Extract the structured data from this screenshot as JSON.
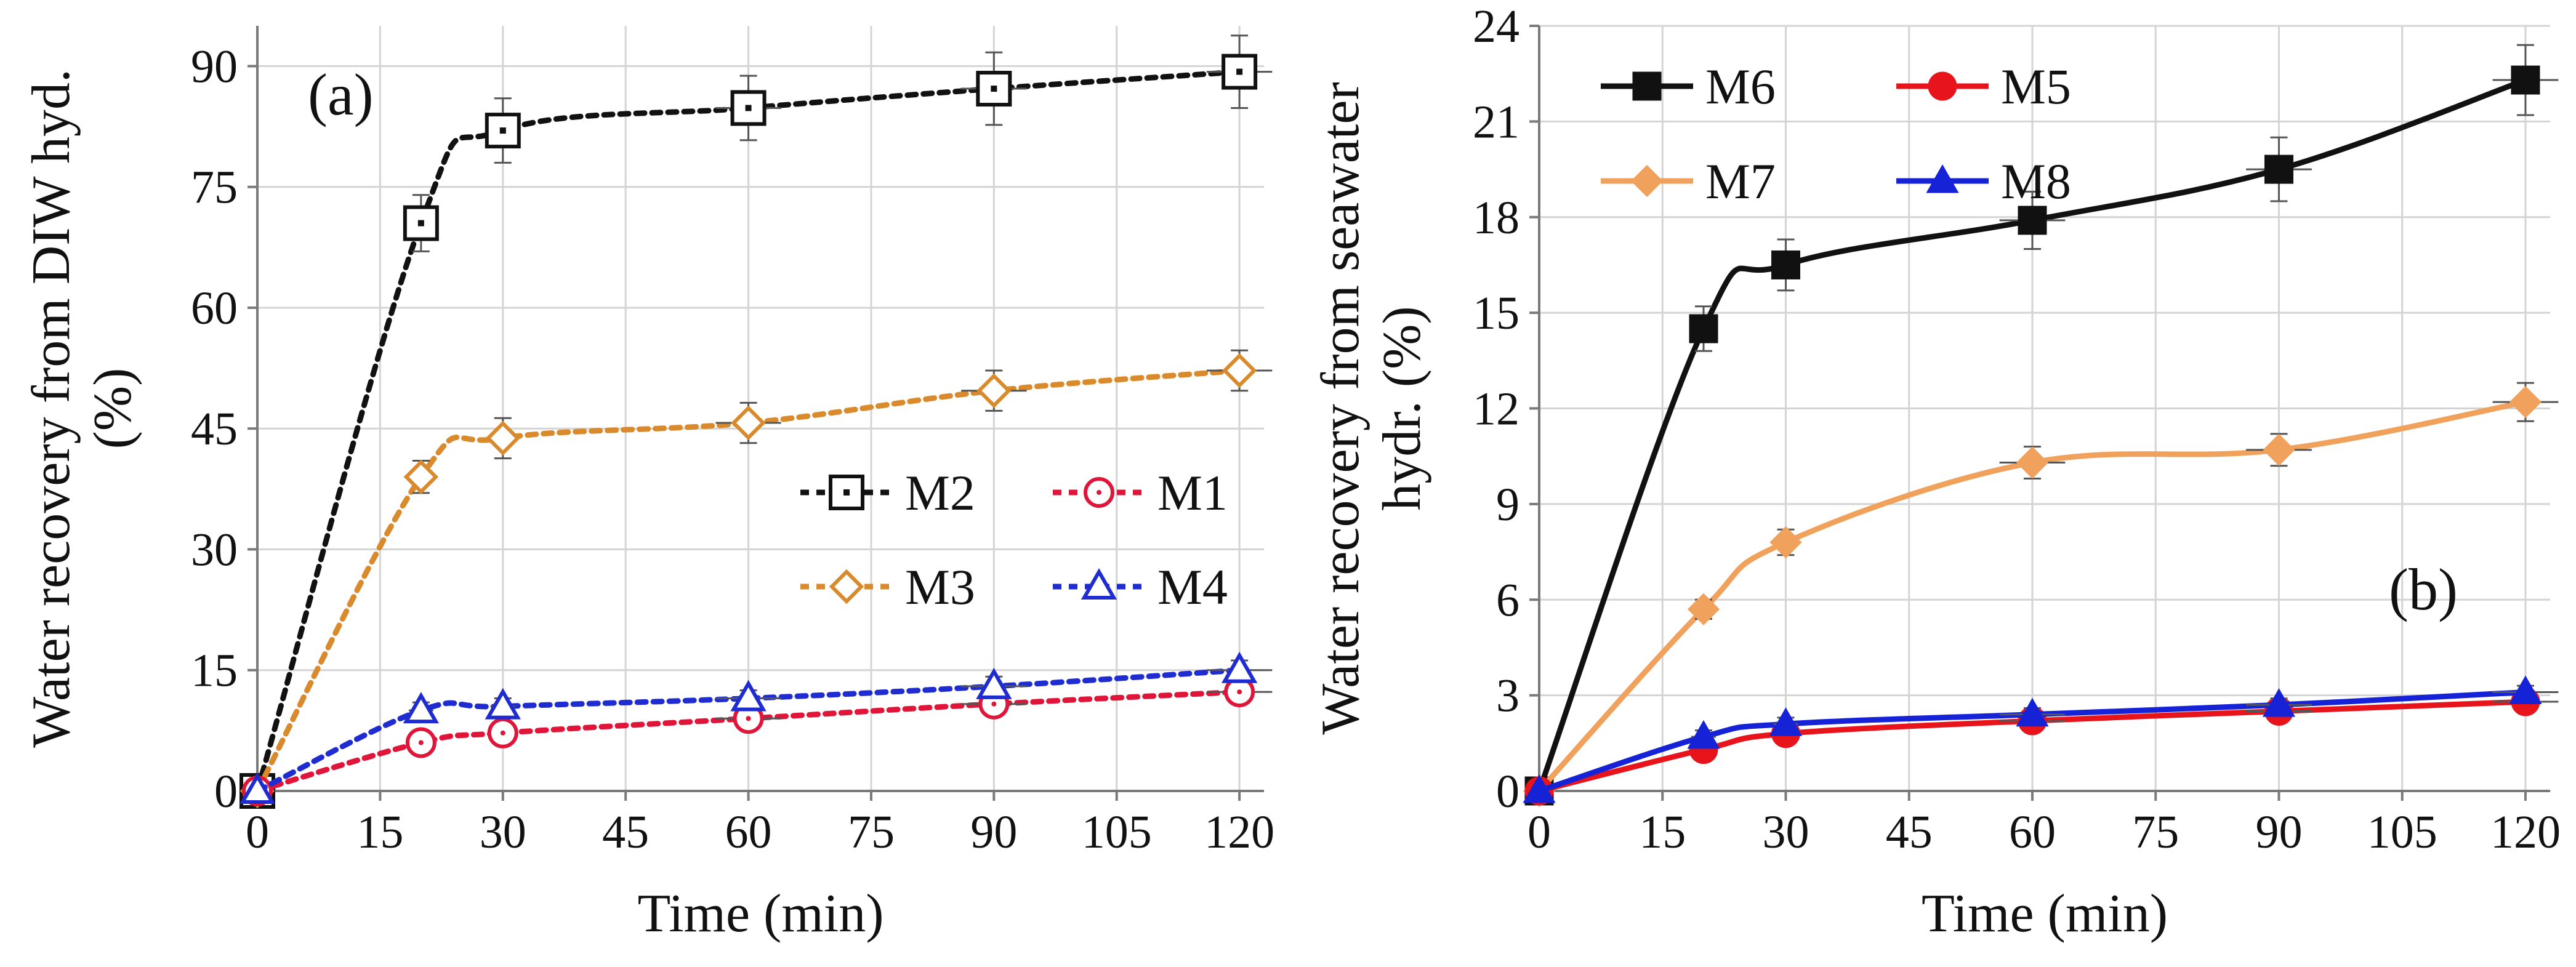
{
  "chart_data": [
    {
      "id": "a",
      "type": "line",
      "panel_label": "(a)",
      "xlabel": "Time (min)",
      "ylabel_lines": [
        "Water recovery from DIW hyd.",
        "(%)"
      ],
      "xlim": [
        0,
        123
      ],
      "ylim": [
        0,
        95
      ],
      "xticks": [
        0,
        15,
        30,
        45,
        60,
        75,
        90,
        105,
        120
      ],
      "yticks": [
        0,
        15,
        30,
        45,
        60,
        75,
        90
      ],
      "grid": true,
      "legend_order": [
        "M2",
        "M1",
        "M3",
        "M4"
      ],
      "x": [
        0,
        20,
        30,
        60,
        90,
        120
      ],
      "series": [
        {
          "name": "M2",
          "color": "#111111",
          "values": [
            0,
            70.5,
            82,
            84.8,
            87.2,
            89.3
          ],
          "yerr": [
            0,
            3.5,
            4.0,
            4.0,
            4.5,
            4.5
          ],
          "marker": "open-square",
          "dash": true
        },
        {
          "name": "M3",
          "color": "#d98a2c",
          "values": [
            0,
            39,
            43.8,
            45.7,
            49.7,
            52.2
          ],
          "yerr": [
            0,
            2.0,
            2.5,
            2.5,
            2.5,
            2.5
          ],
          "marker": "open-diamond",
          "dash": true
        },
        {
          "name": "M1",
          "color": "#e0153a",
          "values": [
            0,
            6,
            7.2,
            9,
            10.8,
            12.3
          ],
          "yerr": [
            0,
            1.0,
            1.0,
            1.0,
            1.2,
            1.2
          ],
          "marker": "open-circle",
          "dash": true
        },
        {
          "name": "M4",
          "color": "#1f2ccf",
          "values": [
            0,
            10,
            10.5,
            11.5,
            13,
            15
          ],
          "yerr": [
            0,
            1.0,
            1.0,
            1.0,
            1.2,
            1.2
          ],
          "marker": "open-triangle",
          "dash": true
        }
      ]
    },
    {
      "id": "b",
      "type": "line",
      "panel_label": "(b)",
      "xlabel": "Time (min)",
      "ylabel_lines": [
        "Water recovery from seawater",
        "hydr.  (%)"
      ],
      "xlim": [
        0,
        123
      ],
      "ylim": [
        0,
        24
      ],
      "xticks": [
        0,
        15,
        30,
        45,
        60,
        75,
        90,
        105,
        120
      ],
      "yticks": [
        0,
        3,
        6,
        9,
        12,
        15,
        18,
        21,
        24
      ],
      "grid": true,
      "legend_order": [
        "M6",
        "M5",
        "M7",
        "M8"
      ],
      "x": [
        0,
        20,
        30,
        60,
        90,
        120
      ],
      "series": [
        {
          "name": "M6",
          "color": "#111111",
          "values": [
            0,
            14.5,
            16.5,
            17.9,
            19.5,
            22.3
          ],
          "yerr": [
            0,
            0.7,
            0.8,
            0.9,
            1.0,
            1.1
          ],
          "marker": "filled-square",
          "dash": false
        },
        {
          "name": "M7",
          "color": "#f0a25c",
          "values": [
            0,
            5.7,
            7.8,
            10.3,
            10.7,
            12.2
          ],
          "yerr": [
            0,
            0.3,
            0.4,
            0.5,
            0.5,
            0.6
          ],
          "marker": "filled-diamond",
          "dash": false
        },
        {
          "name": "M5",
          "color": "#e8141c",
          "values": [
            0,
            1.3,
            1.8,
            2.2,
            2.5,
            2.8
          ],
          "yerr": [
            0,
            0.2,
            0.2,
            0.2,
            0.2,
            0.2
          ],
          "marker": "filled-circle",
          "dash": false
        },
        {
          "name": "M8",
          "color": "#1622d6",
          "values": [
            0,
            1.7,
            2.1,
            2.4,
            2.7,
            3.1
          ],
          "yerr": [
            0,
            0.2,
            0.2,
            0.2,
            0.2,
            0.2
          ],
          "marker": "filled-triangle",
          "dash": false
        }
      ]
    }
  ]
}
